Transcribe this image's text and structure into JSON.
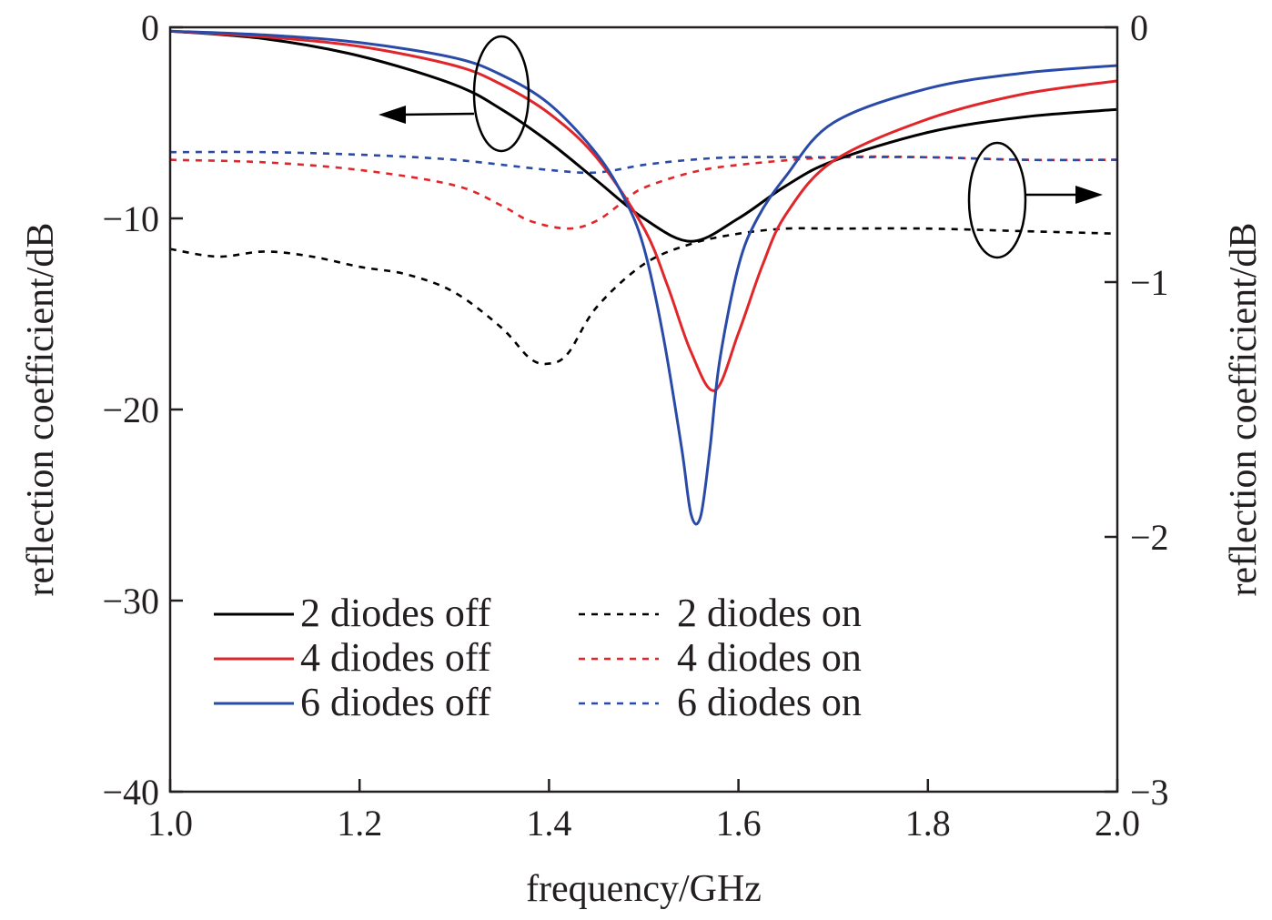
{
  "chart_data": {
    "type": "line",
    "xlabel": "frequency/GHz",
    "ylabel_left": "reflection coefficient/dB",
    "ylabel_right": "reflection coefficient/dB",
    "xlim": [
      1.0,
      2.0
    ],
    "ylim_left": [
      -40,
      0
    ],
    "ylim_right": [
      -3,
      0
    ],
    "x_ticks": [
      "1.0",
      "1.2",
      "1.4",
      "1.6",
      "1.8",
      "2.0"
    ],
    "y_left_ticks": [
      "0",
      "−10",
      "−20",
      "−30",
      "−40"
    ],
    "y_right_ticks": [
      "0",
      "−1",
      "−2",
      "−3"
    ],
    "grid": false,
    "legend_position": "lower-left",
    "colors": {
      "black": "#000000",
      "red": "#e0262b",
      "blue": "#2a4aa8"
    },
    "series": [
      {
        "name": "2 diodes off",
        "axis": "left",
        "style": "solid",
        "color": "#000000",
        "x": [
          1.0,
          1.1,
          1.2,
          1.3,
          1.35,
          1.4,
          1.45,
          1.5,
          1.55,
          1.6,
          1.65,
          1.7,
          1.8,
          1.9,
          2.0
        ],
        "y": [
          -0.2,
          -0.6,
          -1.5,
          -3.0,
          -4.3,
          -6.0,
          -8.0,
          -10.0,
          -11.2,
          -10.0,
          -8.3,
          -7.0,
          -5.5,
          -4.7,
          -4.3
        ]
      },
      {
        "name": "4 diodes off",
        "axis": "left",
        "style": "solid",
        "color": "#e0262b",
        "x": [
          1.0,
          1.1,
          1.2,
          1.3,
          1.35,
          1.4,
          1.45,
          1.5,
          1.525,
          1.55,
          1.575,
          1.6,
          1.625,
          1.65,
          1.7,
          1.8,
          1.9,
          2.0
        ],
        "y": [
          -0.2,
          -0.5,
          -1.0,
          -2.0,
          -3.0,
          -4.5,
          -6.8,
          -10.5,
          -13.5,
          -17.0,
          -19.0,
          -16.0,
          -12.5,
          -9.8,
          -7.0,
          -4.8,
          -3.5,
          -2.8
        ]
      },
      {
        "name": "6 diodes off",
        "axis": "left",
        "style": "solid",
        "color": "#2a4aa8",
        "x": [
          1.0,
          1.1,
          1.2,
          1.3,
          1.35,
          1.4,
          1.45,
          1.48,
          1.5,
          1.52,
          1.54,
          1.55,
          1.56,
          1.57,
          1.58,
          1.6,
          1.62,
          1.65,
          1.7,
          1.8,
          1.9,
          2.0
        ],
        "y": [
          -0.2,
          -0.4,
          -0.8,
          -1.6,
          -2.5,
          -4.0,
          -6.6,
          -9.0,
          -11.5,
          -16.0,
          -22.0,
          -25.5,
          -25.6,
          -22.0,
          -17.5,
          -12.5,
          -10.0,
          -7.8,
          -5.0,
          -3.2,
          -2.4,
          -2.0
        ]
      },
      {
        "name": "2 diodes on",
        "axis": "right",
        "style": "dashed",
        "color": "#000000",
        "x": [
          1.0,
          1.05,
          1.1,
          1.15,
          1.2,
          1.25,
          1.3,
          1.35,
          1.38,
          1.4,
          1.42,
          1.45,
          1.5,
          1.55,
          1.6,
          1.65,
          1.7,
          1.8,
          1.9,
          2.0
        ],
        "y": [
          -0.87,
          -0.9,
          -0.88,
          -0.9,
          -0.94,
          -0.97,
          -1.04,
          -1.18,
          -1.3,
          -1.32,
          -1.28,
          -1.1,
          -0.93,
          -0.85,
          -0.81,
          -0.79,
          -0.79,
          -0.79,
          -0.8,
          -0.81
        ]
      },
      {
        "name": "4 diodes on",
        "axis": "right",
        "style": "dashed",
        "color": "#e0262b",
        "x": [
          1.0,
          1.1,
          1.2,
          1.3,
          1.35,
          1.38,
          1.42,
          1.45,
          1.48,
          1.5,
          1.55,
          1.6,
          1.7,
          1.8,
          1.9,
          2.0
        ],
        "y": [
          -0.52,
          -0.53,
          -0.56,
          -0.62,
          -0.7,
          -0.76,
          -0.79,
          -0.76,
          -0.68,
          -0.63,
          -0.57,
          -0.54,
          -0.51,
          -0.51,
          -0.52,
          -0.52
        ]
      },
      {
        "name": "6 diodes on",
        "axis": "right",
        "style": "dashed",
        "color": "#2a4aa8",
        "x": [
          1.0,
          1.1,
          1.2,
          1.3,
          1.4,
          1.45,
          1.5,
          1.55,
          1.6,
          1.7,
          1.8,
          1.9,
          2.0
        ],
        "y": [
          -0.49,
          -0.49,
          -0.5,
          -0.52,
          -0.56,
          -0.57,
          -0.54,
          -0.52,
          -0.51,
          -0.51,
          -0.51,
          -0.52,
          -0.52
        ]
      }
    ]
  }
}
